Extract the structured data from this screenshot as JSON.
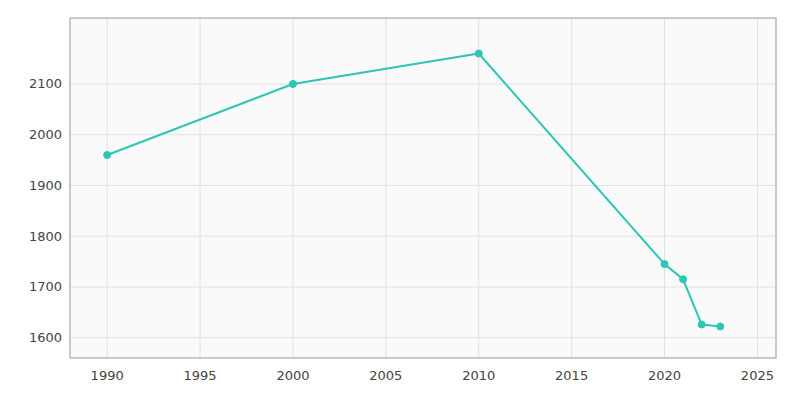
{
  "chart_data": {
    "type": "line",
    "x": [
      1990,
      2000,
      2010,
      2020,
      2021,
      2022,
      2023
    ],
    "values": [
      1960,
      2100,
      2160,
      1745,
      1715,
      1626,
      1622
    ],
    "color": "#2ec4b6",
    "marker": "circle",
    "xlim": [
      1988,
      2026
    ],
    "ylim": [
      1560,
      2230
    ],
    "xticks": [
      1990,
      1995,
      2000,
      2005,
      2010,
      2015,
      2020,
      2025
    ],
    "yticks": [
      1600,
      1700,
      1800,
      1900,
      2000,
      2100
    ],
    "grid": true
  }
}
